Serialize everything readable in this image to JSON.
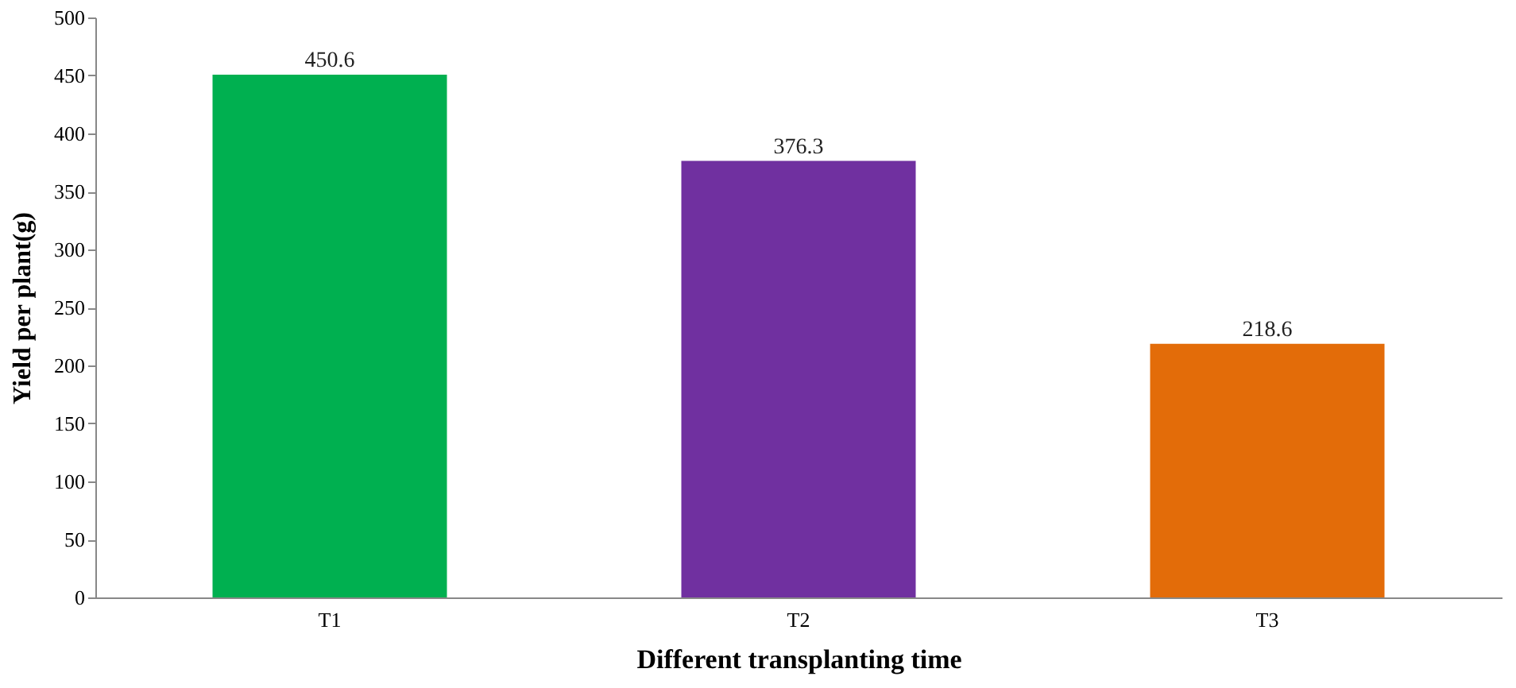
{
  "chart_data": {
    "type": "bar",
    "xlabel": "Different transplanting time",
    "ylabel": "Yield per plant(g)",
    "categories": [
      "T1",
      "T2",
      "T3"
    ],
    "values": [
      450.6,
      376.3,
      218.6
    ],
    "colors": [
      "#00b050",
      "#7030a0",
      "#e36c09"
    ],
    "ylim": [
      0,
      500
    ],
    "yticks": [
      0,
      50,
      100,
      150,
      200,
      250,
      300,
      350,
      400,
      450,
      500
    ],
    "data_labels": true,
    "grid": false,
    "legend": false
  }
}
